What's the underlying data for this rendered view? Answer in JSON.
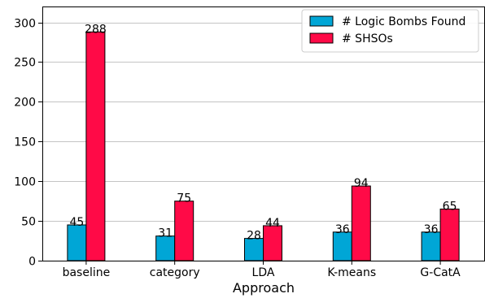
{
  "chart_data": {
    "type": "bar",
    "categories": [
      "baseline",
      "category",
      "LDA",
      "K-means",
      "G-CatA"
    ],
    "series": [
      {
        "name": "# Logic Bombs Found",
        "values": [
          45,
          31,
          28,
          36,
          36
        ],
        "color": "#00a6d6"
      },
      {
        "name": "# SHSOs",
        "values": [
          288,
          75,
          44,
          94,
          65
        ],
        "color": "#ff0a47"
      }
    ],
    "title": "",
    "xlabel": "Approach",
    "ylabel": "",
    "ylim": [
      0,
      320
    ],
    "yticks": [
      0,
      50,
      100,
      150,
      200,
      250,
      300
    ],
    "grid": "horizontal",
    "legend_position": "top-right"
  }
}
